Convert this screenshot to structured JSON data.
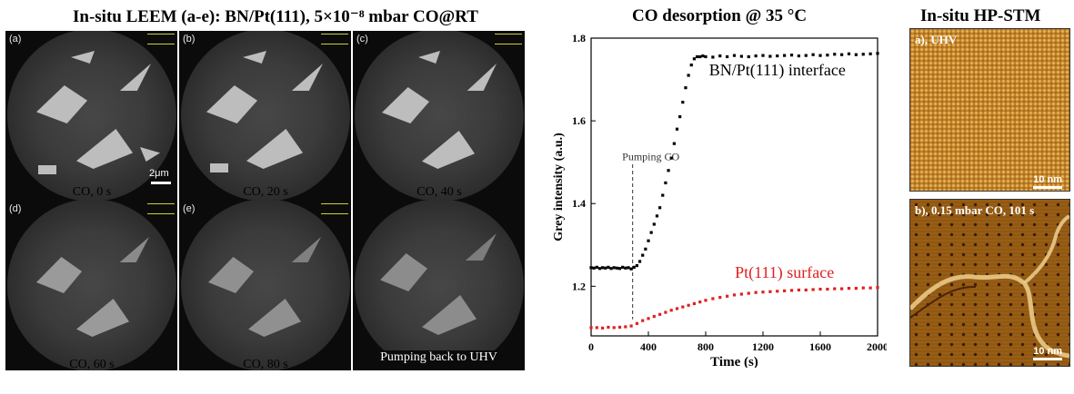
{
  "leem": {
    "title": "In-situ LEEM (a-e): BN/Pt(111), 5×10⁻⁸ mbar CO@RT",
    "panels": [
      {
        "tag": "(a)",
        "caption": "CO, 0 s"
      },
      {
        "tag": "(b)",
        "caption": "CO, 20 s"
      },
      {
        "tag": "(c)",
        "caption": "CO, 40 s"
      },
      {
        "tag": "(d)",
        "caption": "CO, 60 s"
      },
      {
        "tag": "(e)",
        "caption": "CO, 80 s"
      },
      {
        "tag": "",
        "caption": "Pumping back to UHV"
      }
    ],
    "scalebar": "2μm"
  },
  "chart_data": {
    "type": "scatter",
    "title": "CO desorption @ 35 °C",
    "xlabel": "Time (s)",
    "ylabel": "Grey intensity (a.u.)",
    "xlim": [
      0,
      2000
    ],
    "ylim": [
      1.08,
      1.8
    ],
    "xticks": [
      0,
      400,
      800,
      1200,
      1600,
      2000
    ],
    "yticks": [
      1.2,
      1.4,
      1.6,
      1.8
    ],
    "annotation": "Pumping CO",
    "annotation_x": 290,
    "series": [
      {
        "name": "BN/Pt(111) interface",
        "color": "#000000",
        "x": [
          0,
          20,
          40,
          60,
          80,
          100,
          120,
          140,
          160,
          180,
          200,
          220,
          240,
          260,
          280,
          300,
          320,
          340,
          360,
          380,
          400,
          420,
          440,
          460,
          480,
          500,
          520,
          540,
          560,
          580,
          600,
          620,
          640,
          660,
          680,
          700,
          720,
          740,
          760,
          780,
          800,
          850,
          900,
          950,
          1000,
          1050,
          1100,
          1150,
          1200,
          1250,
          1300,
          1350,
          1400,
          1450,
          1500,
          1550,
          1600,
          1650,
          1700,
          1750,
          1800,
          1850,
          1900,
          1950,
          2000
        ],
        "y": [
          1.245,
          1.244,
          1.246,
          1.243,
          1.245,
          1.244,
          1.246,
          1.243,
          1.245,
          1.244,
          1.243,
          1.246,
          1.244,
          1.245,
          1.242,
          1.246,
          1.25,
          1.26,
          1.275,
          1.29,
          1.31,
          1.33,
          1.35,
          1.37,
          1.39,
          1.42,
          1.45,
          1.48,
          1.51,
          1.545,
          1.58,
          1.61,
          1.645,
          1.68,
          1.71,
          1.735,
          1.75,
          1.755,
          1.755,
          1.757,
          1.755,
          1.754,
          1.757,
          1.755,
          1.758,
          1.756,
          1.755,
          1.757,
          1.758,
          1.756,
          1.757,
          1.758,
          1.759,
          1.757,
          1.758,
          1.76,
          1.758,
          1.759,
          1.761,
          1.76,
          1.762,
          1.76,
          1.761,
          1.762,
          1.763
        ]
      },
      {
        "name": "Pt(111) surface",
        "color": "#e02020",
        "x": [
          0,
          40,
          80,
          120,
          160,
          200,
          240,
          280,
          320,
          360,
          400,
          440,
          480,
          520,
          560,
          600,
          640,
          680,
          720,
          760,
          800,
          850,
          900,
          950,
          1000,
          1050,
          1100,
          1150,
          1200,
          1250,
          1300,
          1350,
          1400,
          1450,
          1500,
          1550,
          1600,
          1650,
          1700,
          1750,
          1800,
          1850,
          1900,
          1950,
          2000
        ],
        "y": [
          1.1,
          1.1,
          1.099,
          1.101,
          1.1,
          1.101,
          1.102,
          1.104,
          1.11,
          1.117,
          1.122,
          1.127,
          1.132,
          1.137,
          1.142,
          1.146,
          1.15,
          1.154,
          1.158,
          1.162,
          1.166,
          1.17,
          1.173,
          1.176,
          1.179,
          1.181,
          1.183,
          1.185,
          1.186,
          1.187,
          1.188,
          1.189,
          1.19,
          1.191,
          1.191,
          1.192,
          1.193,
          1.193,
          1.194,
          1.194,
          1.195,
          1.195,
          1.196,
          1.196,
          1.197
        ]
      }
    ]
  },
  "stm": {
    "title": "In-situ HP-STM",
    "panels": [
      {
        "label": "a), UHV",
        "scalebar": "10 nm"
      },
      {
        "label": "b), 0.15 mbar CO, 101 s",
        "scalebar": "10 nm"
      }
    ]
  }
}
